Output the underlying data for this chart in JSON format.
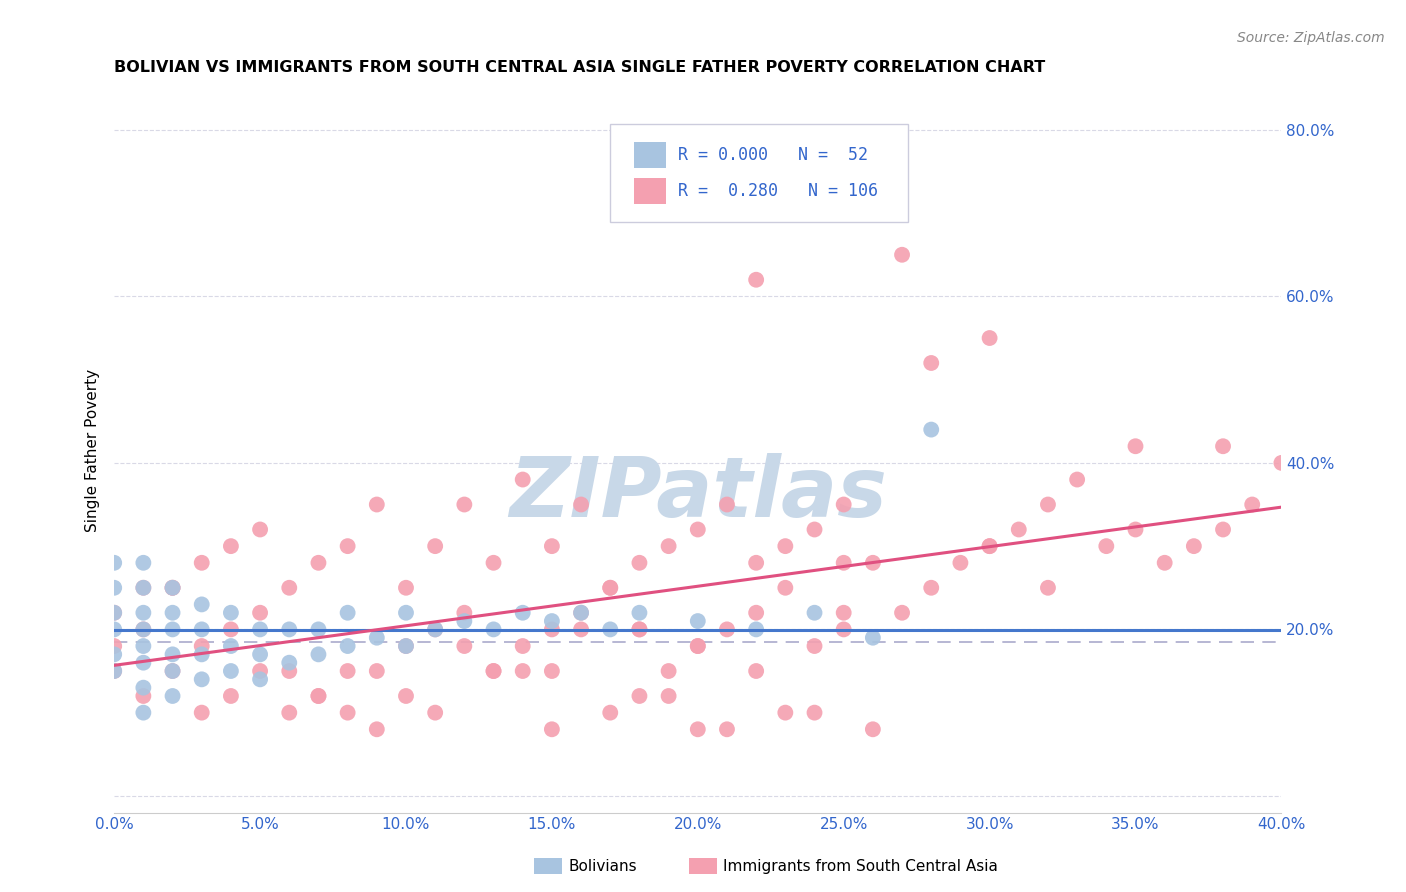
{
  "title": "BOLIVIAN VS IMMIGRANTS FROM SOUTH CENTRAL ASIA SINGLE FATHER POVERTY CORRELATION CHART",
  "source": "Source: ZipAtlas.com",
  "ylabel": "Single Father Poverty",
  "xlim": [
    0.0,
    0.4
  ],
  "ylim": [
    -0.02,
    0.85
  ],
  "color_bolivian": "#a8c4e0",
  "color_immigrant": "#f4a0b0",
  "color_blue_text": "#3366cc",
  "regression_color_bolivian": "#4477cc",
  "regression_color_immigrant": "#e05080",
  "dashed_line_color": "#aaaacc",
  "watermark_color": "#c8d8e8",
  "bolivian_x": [
    0.0,
    0.0,
    0.0,
    0.0,
    0.0,
    0.0,
    0.01,
    0.01,
    0.01,
    0.01,
    0.01,
    0.01,
    0.01,
    0.01,
    0.02,
    0.02,
    0.02,
    0.02,
    0.02,
    0.02,
    0.03,
    0.03,
    0.03,
    0.03,
    0.04,
    0.04,
    0.04,
    0.05,
    0.05,
    0.05,
    0.06,
    0.06,
    0.07,
    0.07,
    0.08,
    0.08,
    0.09,
    0.1,
    0.1,
    0.11,
    0.12,
    0.13,
    0.14,
    0.15,
    0.16,
    0.17,
    0.18,
    0.2,
    0.22,
    0.24,
    0.26,
    0.28
  ],
  "bolivian_y": [
    0.15,
    0.17,
    0.2,
    0.22,
    0.25,
    0.28,
    0.1,
    0.13,
    0.16,
    0.18,
    0.2,
    0.22,
    0.25,
    0.28,
    0.12,
    0.15,
    0.17,
    0.2,
    0.22,
    0.25,
    0.14,
    0.17,
    0.2,
    0.23,
    0.15,
    0.18,
    0.22,
    0.14,
    0.17,
    0.2,
    0.16,
    0.2,
    0.17,
    0.2,
    0.18,
    0.22,
    0.19,
    0.18,
    0.22,
    0.2,
    0.21,
    0.2,
    0.22,
    0.21,
    0.22,
    0.2,
    0.22,
    0.21,
    0.2,
    0.22,
    0.19,
    0.44
  ],
  "immigrant_x": [
    0.0,
    0.0,
    0.0,
    0.01,
    0.01,
    0.02,
    0.02,
    0.03,
    0.03,
    0.04,
    0.04,
    0.05,
    0.05,
    0.06,
    0.06,
    0.07,
    0.07,
    0.08,
    0.08,
    0.09,
    0.09,
    0.1,
    0.1,
    0.11,
    0.11,
    0.12,
    0.12,
    0.13,
    0.13,
    0.14,
    0.14,
    0.15,
    0.15,
    0.16,
    0.16,
    0.17,
    0.17,
    0.18,
    0.18,
    0.19,
    0.19,
    0.2,
    0.2,
    0.21,
    0.21,
    0.22,
    0.22,
    0.23,
    0.23,
    0.24,
    0.24,
    0.25,
    0.25,
    0.26,
    0.27,
    0.28,
    0.29,
    0.3,
    0.31,
    0.32,
    0.33,
    0.34,
    0.35,
    0.36,
    0.37,
    0.38,
    0.39,
    0.22,
    0.28,
    0.3,
    0.35,
    0.27,
    0.18,
    0.2,
    0.15,
    0.25,
    0.32,
    0.1,
    0.12,
    0.14,
    0.16,
    0.08,
    0.06,
    0.04,
    0.26,
    0.24,
    0.22,
    0.2,
    0.18,
    0.23,
    0.21,
    0.19,
    0.17,
    0.15,
    0.13,
    0.11,
    0.09,
    0.07,
    0.05,
    0.03,
    0.01,
    0.02,
    0.25,
    0.3,
    0.38,
    0.4
  ],
  "immigrant_y": [
    0.18,
    0.22,
    0.15,
    0.2,
    0.25,
    0.15,
    0.25,
    0.18,
    0.28,
    0.2,
    0.3,
    0.22,
    0.32,
    0.25,
    0.1,
    0.28,
    0.12,
    0.3,
    0.15,
    0.15,
    0.35,
    0.18,
    0.25,
    0.2,
    0.3,
    0.22,
    0.35,
    0.15,
    0.28,
    0.18,
    0.38,
    0.2,
    0.3,
    0.22,
    0.35,
    0.25,
    0.25,
    0.28,
    0.2,
    0.3,
    0.15,
    0.32,
    0.18,
    0.35,
    0.2,
    0.28,
    0.22,
    0.3,
    0.25,
    0.32,
    0.18,
    0.35,
    0.2,
    0.28,
    0.22,
    0.25,
    0.28,
    0.3,
    0.32,
    0.35,
    0.38,
    0.3,
    0.32,
    0.28,
    0.3,
    0.32,
    0.35,
    0.62,
    0.52,
    0.55,
    0.42,
    0.65,
    0.2,
    0.18,
    0.15,
    0.22,
    0.25,
    0.12,
    0.18,
    0.15,
    0.2,
    0.1,
    0.15,
    0.12,
    0.08,
    0.1,
    0.15,
    0.08,
    0.12,
    0.1,
    0.08,
    0.12,
    0.1,
    0.08,
    0.15,
    0.1,
    0.08,
    0.12,
    0.15,
    0.1,
    0.12,
    0.25,
    0.28,
    0.3,
    0.42,
    0.4
  ]
}
